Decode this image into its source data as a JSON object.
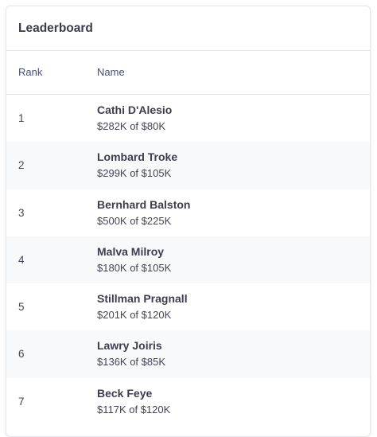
{
  "header": {
    "title": "Leaderboard"
  },
  "table": {
    "columns": [
      "Rank",
      "Name"
    ],
    "rows": [
      {
        "rank": "1",
        "name": "Cathi D'Alesio",
        "detail": "$282K of $80K"
      },
      {
        "rank": "2",
        "name": "Lombard Troke",
        "detail": "$299K of $105K"
      },
      {
        "rank": "3",
        "name": "Bernhard Balston",
        "detail": "$500K of $225K"
      },
      {
        "rank": "4",
        "name": "Malva Milroy",
        "detail": "$180K of $105K"
      },
      {
        "rank": "5",
        "name": "Stillman Pragnall",
        "detail": "$201K of $120K"
      },
      {
        "rank": "6",
        "name": "Lawry Joiris",
        "detail": "$136K of $85K"
      },
      {
        "rank": "7",
        "name": "Beck Feye",
        "detail": "$117K of $120K"
      }
    ]
  }
}
